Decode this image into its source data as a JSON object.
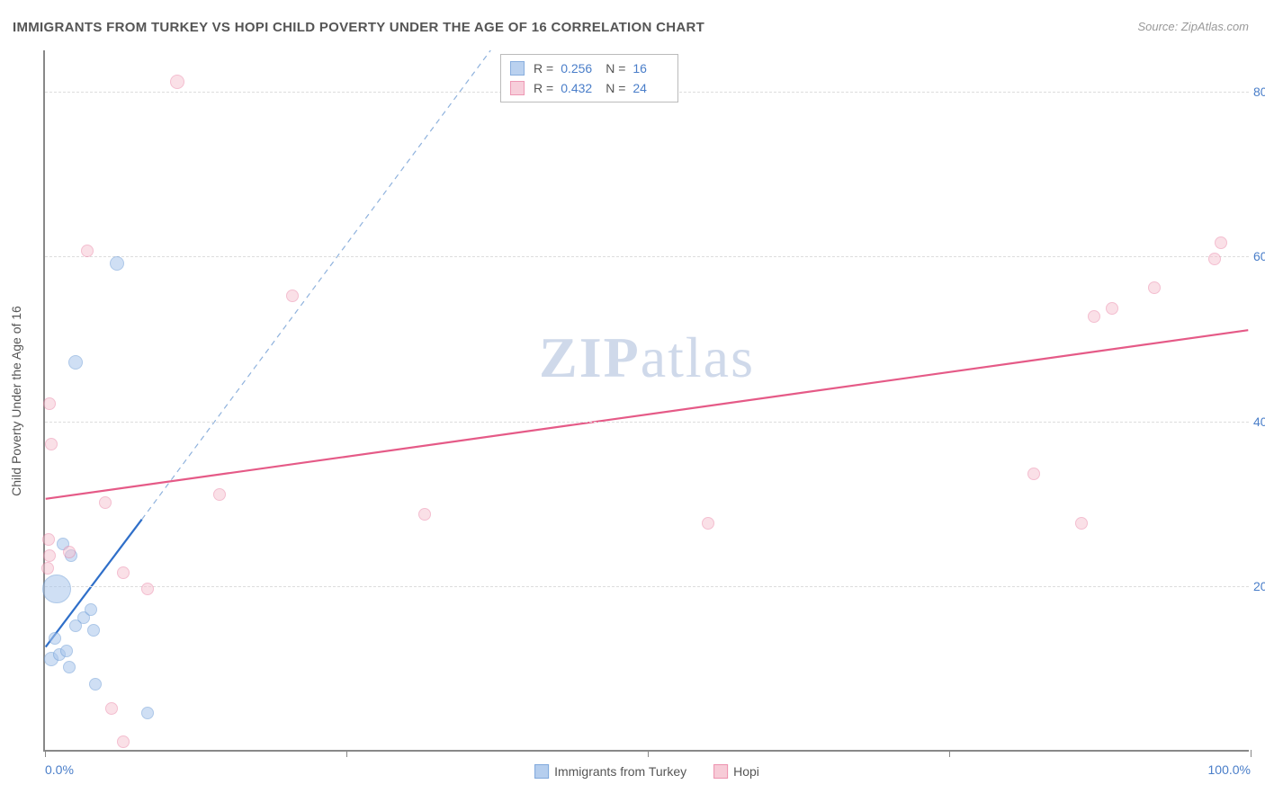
{
  "title": "IMMIGRANTS FROM TURKEY VS HOPI CHILD POVERTY UNDER THE AGE OF 16 CORRELATION CHART",
  "source_label": "Source: ZipAtlas.com",
  "ylabel": "Child Poverty Under the Age of 16",
  "watermark": {
    "bold": "ZIP",
    "rest": "atlas"
  },
  "chart": {
    "type": "scatter-with-regression",
    "background_color": "#ffffff",
    "grid_color": "#dddddd",
    "axis_color": "#888888",
    "tick_label_color": "#4a7ec9",
    "xlim": [
      0,
      100
    ],
    "ylim": [
      0,
      85
    ],
    "xticks": [
      0,
      25,
      50,
      75,
      100
    ],
    "xtick_labels": [
      "0.0%",
      "",
      "",
      "",
      "100.0%"
    ],
    "yticks": [
      20,
      40,
      60,
      80
    ],
    "ytick_labels": [
      "20.0%",
      "40.0%",
      "60.0%",
      "80.0%"
    ],
    "series": [
      {
        "name": "Immigrants from Turkey",
        "key": "turkey",
        "fill_color": "#a9c6ec",
        "stroke_color": "#6b9bd6",
        "fill_opacity": 0.55,
        "marker_stroke_width": 1.2,
        "R": "0.256",
        "N": "16",
        "regression": {
          "solid": {
            "x1": 0,
            "y1": 12.5,
            "x2": 8,
            "y2": 28,
            "color": "#2f6fc9",
            "width": 2.2
          },
          "dashed": {
            "x1": 8,
            "y1": 28,
            "x2": 37,
            "y2": 85,
            "color": "#8fb2dd",
            "width": 1.2,
            "dash": "6 5"
          }
        },
        "points": [
          {
            "x": 1.0,
            "y": 19.5,
            "r": 16
          },
          {
            "x": 0.5,
            "y": 11.0,
            "r": 8
          },
          {
            "x": 1.2,
            "y": 11.5,
            "r": 7
          },
          {
            "x": 1.8,
            "y": 12.0,
            "r": 7
          },
          {
            "x": 2.0,
            "y": 10.0,
            "r": 7
          },
          {
            "x": 3.2,
            "y": 16.0,
            "r": 7
          },
          {
            "x": 4.0,
            "y": 14.5,
            "r": 7
          },
          {
            "x": 4.2,
            "y": 8.0,
            "r": 7
          },
          {
            "x": 3.8,
            "y": 17.0,
            "r": 7
          },
          {
            "x": 2.5,
            "y": 15.0,
            "r": 7
          },
          {
            "x": 8.5,
            "y": 4.5,
            "r": 7
          },
          {
            "x": 2.5,
            "y": 47.0,
            "r": 8
          },
          {
            "x": 6.0,
            "y": 59.0,
            "r": 8
          },
          {
            "x": 1.5,
            "y": 25.0,
            "r": 7
          },
          {
            "x": 0.8,
            "y": 13.5,
            "r": 7
          },
          {
            "x": 2.2,
            "y": 23.5,
            "r": 7
          }
        ]
      },
      {
        "name": "Hopi",
        "key": "hopi",
        "fill_color": "#f6c3d1",
        "stroke_color": "#ea7fa2",
        "fill_opacity": 0.5,
        "marker_stroke_width": 1.2,
        "R": "0.432",
        "N": "24",
        "regression": {
          "solid": {
            "x1": 0,
            "y1": 30.5,
            "x2": 100,
            "y2": 51.0,
            "color": "#e55a87",
            "width": 2.2
          }
        },
        "points": [
          {
            "x": 0.2,
            "y": 22.0,
            "r": 7
          },
          {
            "x": 0.4,
            "y": 23.5,
            "r": 7
          },
          {
            "x": 0.3,
            "y": 25.5,
            "r": 7
          },
          {
            "x": 0.5,
            "y": 37.0,
            "r": 7
          },
          {
            "x": 0.4,
            "y": 42.0,
            "r": 7
          },
          {
            "x": 3.5,
            "y": 60.5,
            "r": 7
          },
          {
            "x": 5.0,
            "y": 30.0,
            "r": 7
          },
          {
            "x": 6.5,
            "y": 21.5,
            "r": 7
          },
          {
            "x": 8.5,
            "y": 19.5,
            "r": 7
          },
          {
            "x": 5.5,
            "y": 5.0,
            "r": 7
          },
          {
            "x": 6.5,
            "y": 1.0,
            "r": 7
          },
          {
            "x": 11.0,
            "y": 81.0,
            "r": 8
          },
          {
            "x": 14.5,
            "y": 31.0,
            "r": 7
          },
          {
            "x": 20.5,
            "y": 55.0,
            "r": 7
          },
          {
            "x": 31.5,
            "y": 28.5,
            "r": 7
          },
          {
            "x": 55.0,
            "y": 27.5,
            "r": 7
          },
          {
            "x": 82.0,
            "y": 33.5,
            "r": 7
          },
          {
            "x": 86.0,
            "y": 27.5,
            "r": 7
          },
          {
            "x": 87.0,
            "y": 52.5,
            "r": 7
          },
          {
            "x": 88.5,
            "y": 53.5,
            "r": 7
          },
          {
            "x": 92.0,
            "y": 56.0,
            "r": 7
          },
          {
            "x": 97.0,
            "y": 59.5,
            "r": 7
          },
          {
            "x": 97.5,
            "y": 61.5,
            "r": 7
          },
          {
            "x": 2.0,
            "y": 24.0,
            "r": 7
          }
        ]
      }
    ]
  },
  "legend_bottom": [
    {
      "label": "Immigrants from Turkey",
      "fill": "#a9c6ec",
      "stroke": "#6b9bd6"
    },
    {
      "label": "Hopi",
      "fill": "#f6c3d1",
      "stroke": "#ea7fa2"
    }
  ]
}
